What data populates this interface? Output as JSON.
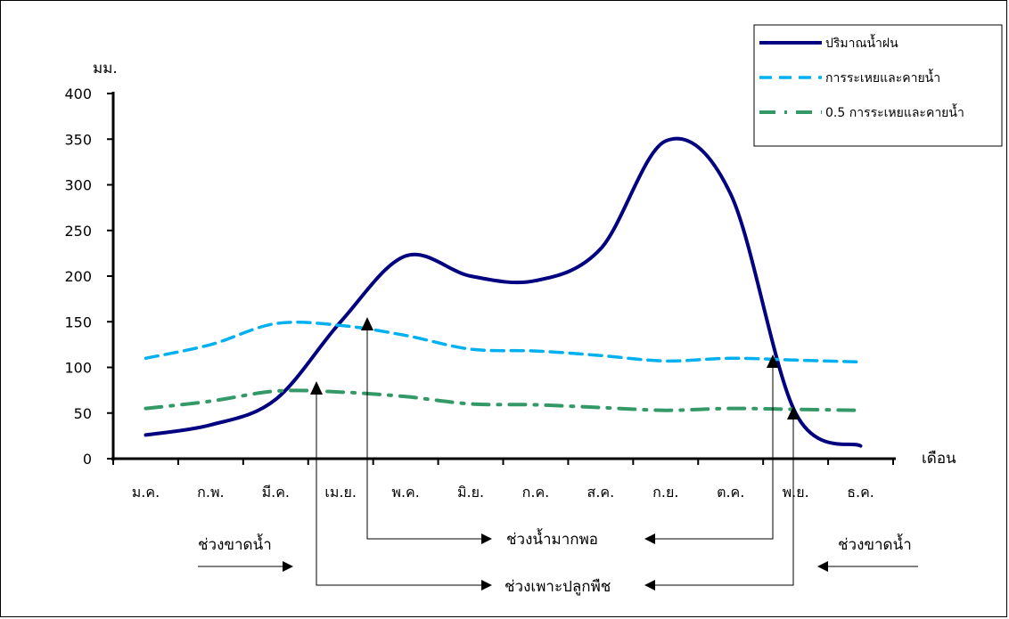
{
  "chart_data": {
    "type": "line",
    "ylabel": "มม.",
    "xlabel": "เดือน",
    "ylim": [
      0,
      400
    ],
    "yticks": [
      0,
      50,
      100,
      150,
      200,
      250,
      300,
      350,
      400
    ],
    "categories": [
      "ม.ค.",
      "ก.พ.",
      "มี.ค.",
      "เม.ย.",
      "พ.ค.",
      "มิ.ย.",
      "ก.ค.",
      "ส.ค.",
      "ก.ย.",
      "ต.ค.",
      "พ.ย.",
      "ธ.ค."
    ],
    "series": [
      {
        "name": "ปริมาณน้ำฝน",
        "color": "#000080",
        "dash": "solid",
        "values": [
          26,
          37,
          65,
          150,
          222,
          200,
          195,
          230,
          348,
          290,
          50,
          14
        ]
      },
      {
        "name": "การระเหยและคายน้ำ",
        "color": "#00b0f0",
        "dash": "dashed",
        "values": [
          110,
          125,
          148,
          146,
          135,
          120,
          118,
          113,
          107,
          110,
          108,
          106
        ]
      },
      {
        "name": "0.5 การระเหยและคายน้ำ",
        "color": "#339966",
        "dash": "dashdot",
        "values": [
          55,
          63,
          74,
          73,
          68,
          60,
          59,
          56,
          53,
          55,
          54,
          53
        ]
      }
    ],
    "legend": "top-right",
    "grid": false,
    "annotations": {
      "dry_left": "ช่วงขาดน้ำ",
      "dry_right": "ช่วงขาดน้ำ",
      "enough_water": "ช่วงน้ำมากพอ",
      "growing": "ช่วงเพาะปลูกพืช"
    }
  }
}
